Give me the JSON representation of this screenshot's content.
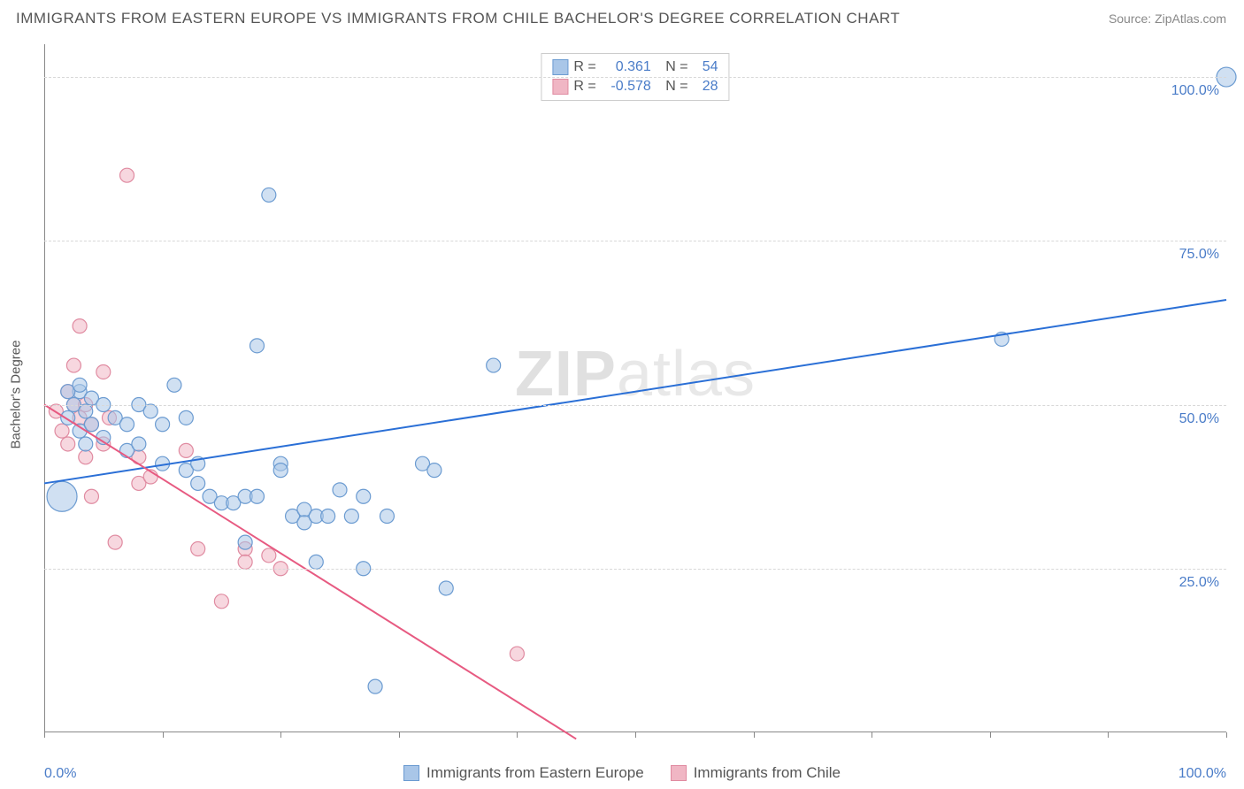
{
  "header": {
    "title": "IMMIGRANTS FROM EASTERN EUROPE VS IMMIGRANTS FROM CHILE BACHELOR'S DEGREE CORRELATION CHART",
    "source": "Source: ZipAtlas.com"
  },
  "watermark": {
    "pre": "ZIP",
    "post": "atlas"
  },
  "chart": {
    "type": "scatter",
    "y_axis_title": "Bachelor's Degree",
    "xlim": [
      0,
      100
    ],
    "ylim": [
      0,
      105
    ],
    "x_ticks": [
      0,
      10,
      20,
      30,
      40,
      50,
      60,
      70,
      80,
      90,
      100
    ],
    "y_grid": [
      25,
      50,
      75,
      100
    ],
    "y_tick_labels": [
      "25.0%",
      "50.0%",
      "75.0%",
      "100.0%"
    ],
    "x_label_min": "0.0%",
    "x_label_max": "100.0%",
    "background_color": "#ffffff",
    "grid_color": "#d8d8d8",
    "axis_color": "#888888"
  },
  "series": {
    "eastern_europe": {
      "label": "Immigrants from Eastern Europe",
      "fill_color": "#a9c6e8",
      "stroke_color": "#6b9bd1",
      "fill_opacity": 0.55,
      "marker_r": 8,
      "trend_color": "#2a6fd6",
      "trend_width": 2,
      "trend": {
        "x1": 0,
        "y1": 38,
        "x2": 100,
        "y2": 66
      },
      "R": "0.361",
      "N": "54",
      "points": [
        {
          "x": 1.5,
          "y": 36,
          "r": 17
        },
        {
          "x": 2,
          "y": 48
        },
        {
          "x": 2.5,
          "y": 50
        },
        {
          "x": 3,
          "y": 52
        },
        {
          "x": 3,
          "y": 46
        },
        {
          "x": 3.5,
          "y": 49
        },
        {
          "x": 3.5,
          "y": 44
        },
        {
          "x": 4,
          "y": 51
        },
        {
          "x": 4,
          "y": 47
        },
        {
          "x": 5,
          "y": 50
        },
        {
          "x": 5,
          "y": 45
        },
        {
          "x": 6,
          "y": 48
        },
        {
          "x": 7,
          "y": 47
        },
        {
          "x": 7,
          "y": 43
        },
        {
          "x": 8,
          "y": 50
        },
        {
          "x": 8,
          "y": 44
        },
        {
          "x": 9,
          "y": 49
        },
        {
          "x": 10,
          "y": 47
        },
        {
          "x": 10,
          "y": 41
        },
        {
          "x": 11,
          "y": 53
        },
        {
          "x": 12,
          "y": 48
        },
        {
          "x": 12,
          "y": 40
        },
        {
          "x": 13,
          "y": 41
        },
        {
          "x": 13,
          "y": 38
        },
        {
          "x": 14,
          "y": 36
        },
        {
          "x": 15,
          "y": 35
        },
        {
          "x": 16,
          "y": 35
        },
        {
          "x": 17,
          "y": 36
        },
        {
          "x": 17,
          "y": 29
        },
        {
          "x": 18,
          "y": 59
        },
        {
          "x": 18,
          "y": 36
        },
        {
          "x": 19,
          "y": 82
        },
        {
          "x": 20,
          "y": 41
        },
        {
          "x": 20,
          "y": 40
        },
        {
          "x": 21,
          "y": 33
        },
        {
          "x": 22,
          "y": 34
        },
        {
          "x": 22,
          "y": 32
        },
        {
          "x": 23,
          "y": 33
        },
        {
          "x": 23,
          "y": 26
        },
        {
          "x": 24,
          "y": 33
        },
        {
          "x": 25,
          "y": 37
        },
        {
          "x": 26,
          "y": 33
        },
        {
          "x": 27,
          "y": 25
        },
        {
          "x": 27,
          "y": 36
        },
        {
          "x": 28,
          "y": 7
        },
        {
          "x": 29,
          "y": 33
        },
        {
          "x": 32,
          "y": 41
        },
        {
          "x": 33,
          "y": 40
        },
        {
          "x": 34,
          "y": 22
        },
        {
          "x": 38,
          "y": 56
        },
        {
          "x": 81,
          "y": 60
        },
        {
          "x": 100,
          "y": 100,
          "r": 11
        },
        {
          "x": 2,
          "y": 52
        },
        {
          "x": 3,
          "y": 53
        }
      ]
    },
    "chile": {
      "label": "Immigrants from Chile",
      "fill_color": "#f0b6c4",
      "stroke_color": "#e08ba1",
      "fill_opacity": 0.55,
      "marker_r": 8,
      "trend_color": "#e75a81",
      "trend_width": 2,
      "trend": {
        "x1": 0,
        "y1": 50,
        "x2": 45,
        "y2": -1
      },
      "R": "-0.578",
      "N": "28",
      "points": [
        {
          "x": 1,
          "y": 49
        },
        {
          "x": 1.5,
          "y": 46
        },
        {
          "x": 2,
          "y": 52
        },
        {
          "x": 2,
          "y": 44
        },
        {
          "x": 2.5,
          "y": 50
        },
        {
          "x": 2.5,
          "y": 56
        },
        {
          "x": 3,
          "y": 62
        },
        {
          "x": 3,
          "y": 48
        },
        {
          "x": 3.5,
          "y": 50
        },
        {
          "x": 3.5,
          "y": 42
        },
        {
          "x": 4,
          "y": 47
        },
        {
          "x": 4,
          "y": 36
        },
        {
          "x": 5,
          "y": 55
        },
        {
          "x": 5,
          "y": 44
        },
        {
          "x": 5.5,
          "y": 48
        },
        {
          "x": 6,
          "y": 29
        },
        {
          "x": 7,
          "y": 85
        },
        {
          "x": 8,
          "y": 42
        },
        {
          "x": 8,
          "y": 38
        },
        {
          "x": 9,
          "y": 39
        },
        {
          "x": 12,
          "y": 43
        },
        {
          "x": 13,
          "y": 28
        },
        {
          "x": 15,
          "y": 20
        },
        {
          "x": 17,
          "y": 28
        },
        {
          "x": 17,
          "y": 26
        },
        {
          "x": 19,
          "y": 27
        },
        {
          "x": 20,
          "y": 25
        },
        {
          "x": 40,
          "y": 12
        }
      ]
    }
  },
  "stats_legend": {
    "R_label": "R =",
    "N_label": "N ="
  }
}
